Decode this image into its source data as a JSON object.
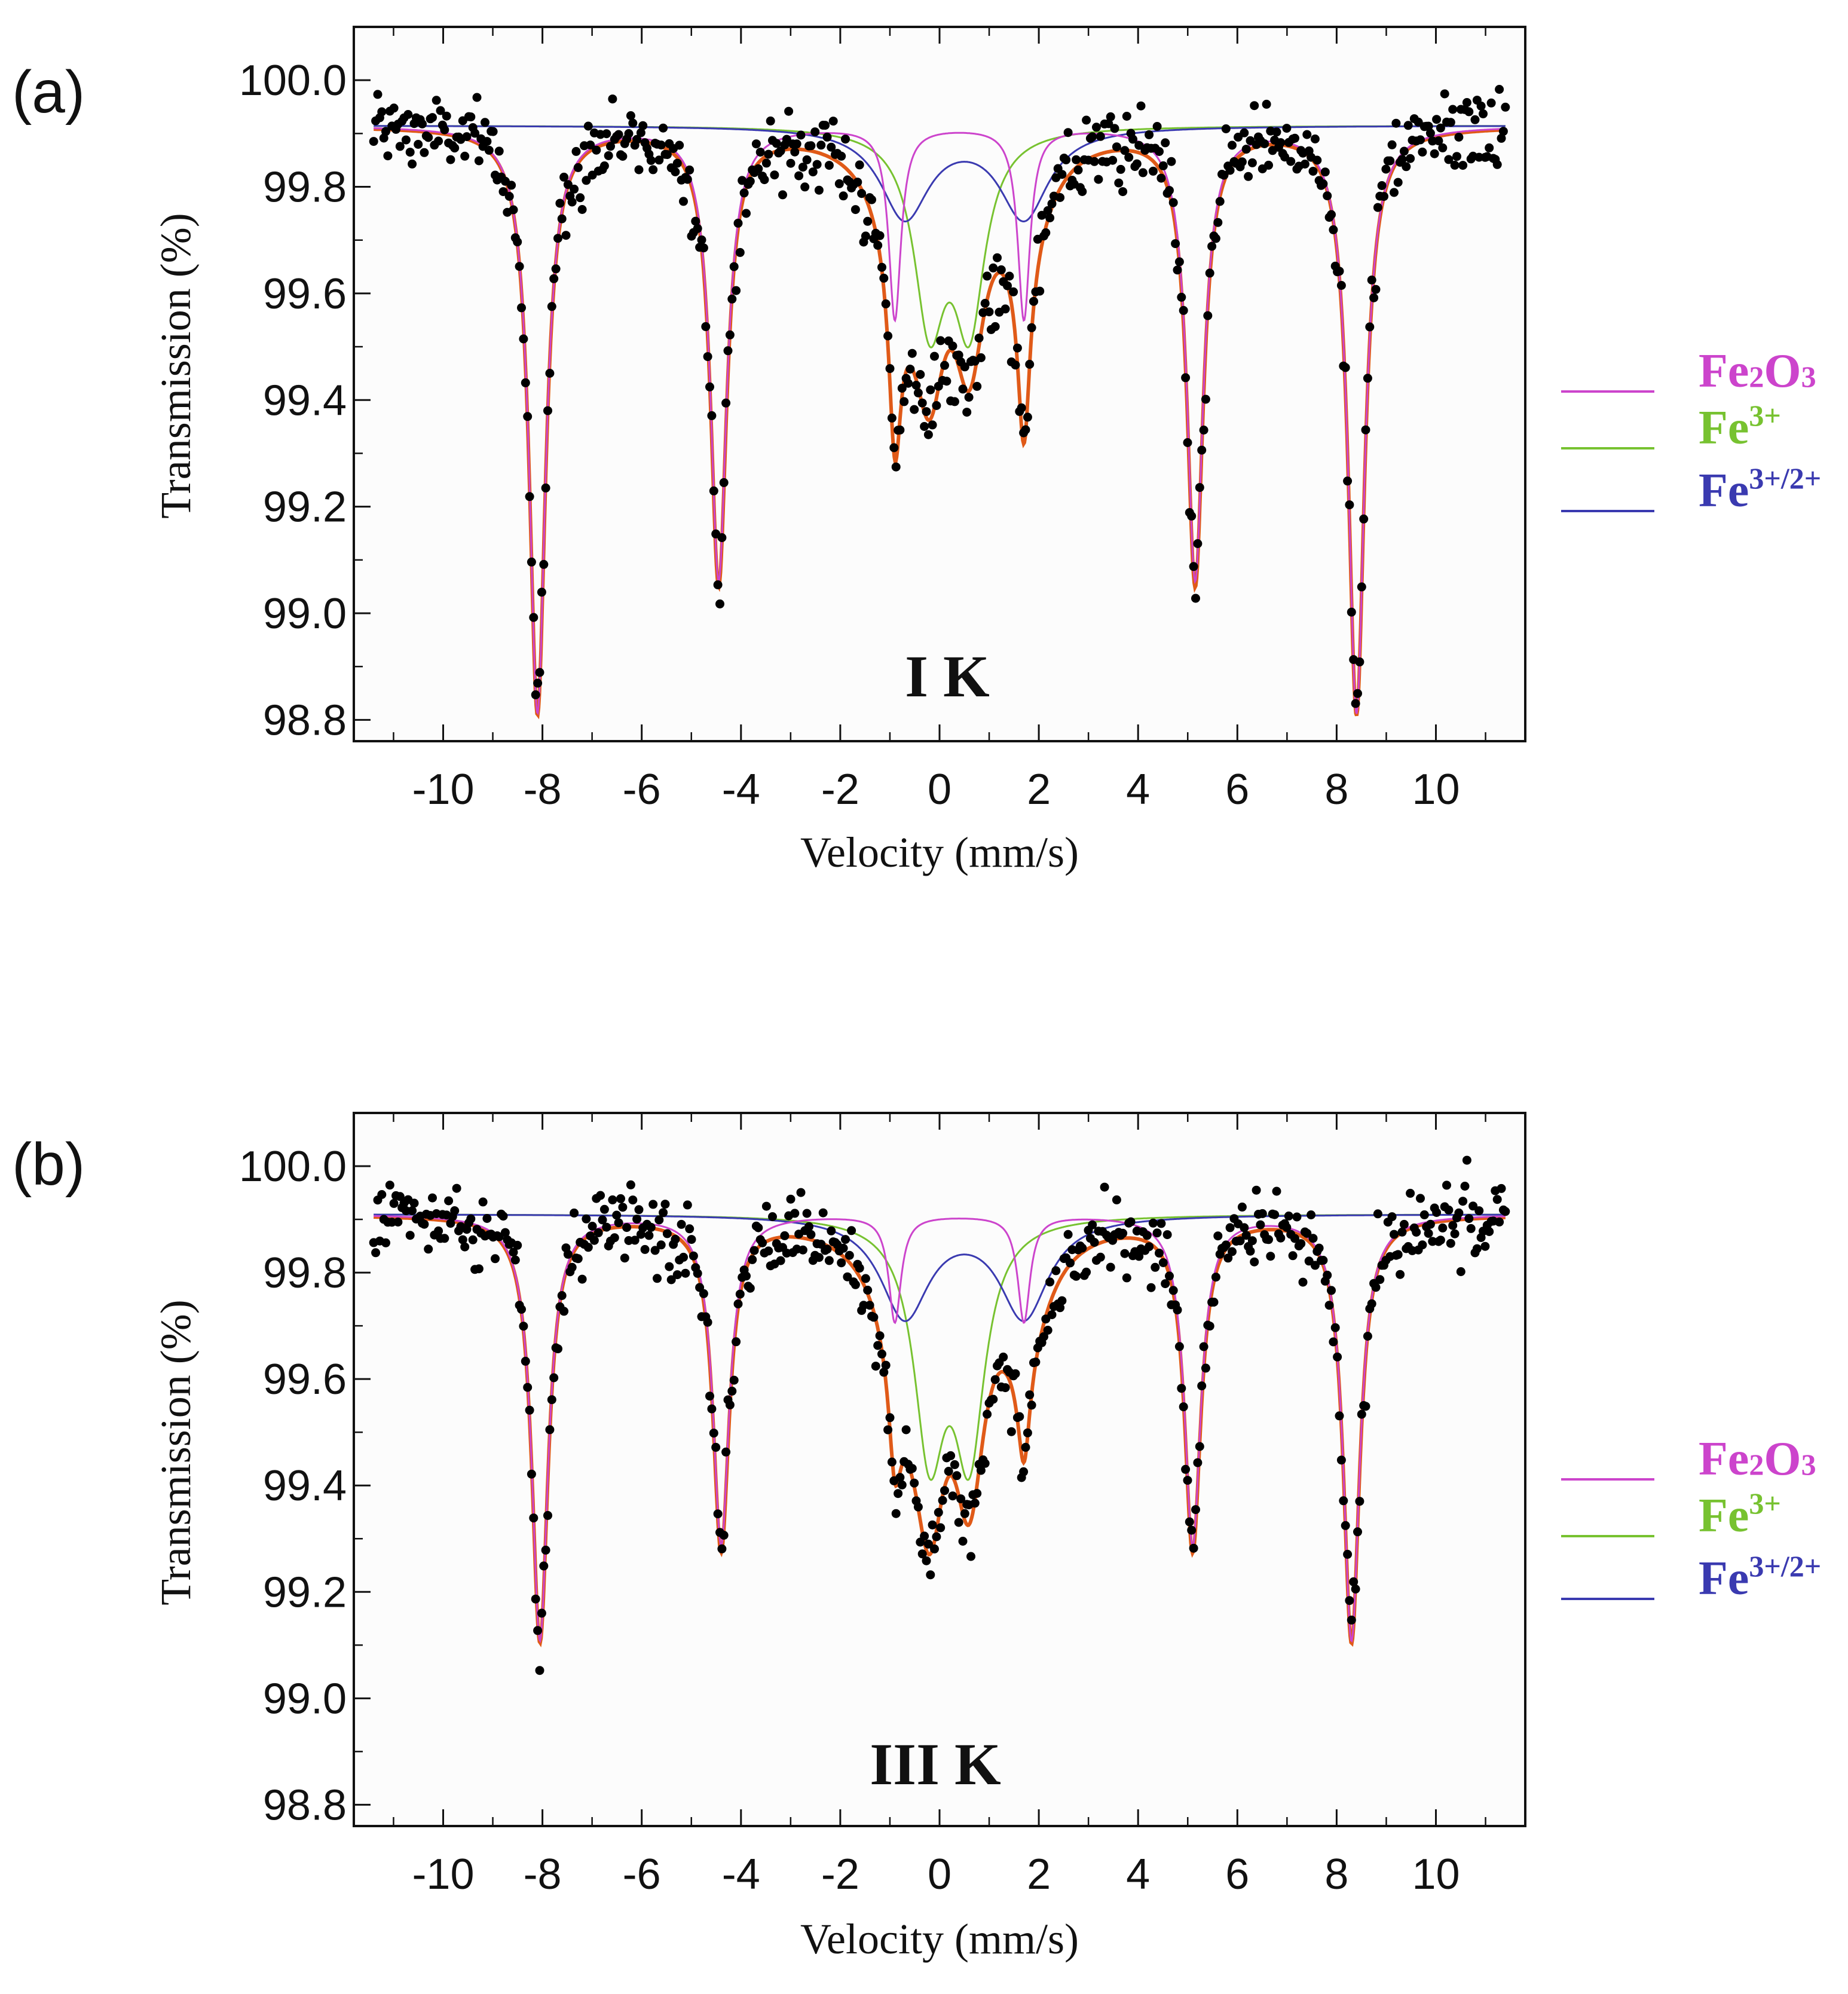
{
  "colors": {
    "Fe2O3": "#cc44cc",
    "Fe3+": "#77c230",
    "Fe3+/2+": "#3a3ab0",
    "fit": "#e05a18",
    "points": "#000000",
    "axis": "#111111"
  },
  "legend": [
    {
      "key": "Fe2O3",
      "parts": [
        {
          "t": "Fe",
          "s": "base"
        },
        {
          "t": "2",
          "s": "sub"
        },
        {
          "t": "O",
          "s": "base"
        },
        {
          "t": "3",
          "s": "sub"
        }
      ]
    },
    {
      "key": "Fe3+",
      "parts": [
        {
          "t": "Fe",
          "s": "base"
        },
        {
          "t": "3+",
          "s": "sup"
        }
      ]
    },
    {
      "key": "Fe3+/2+",
      "parts": [
        {
          "t": "Fe",
          "s": "base"
        },
        {
          "t": "3+/2+",
          "s": "sup"
        }
      ]
    }
  ],
  "chart_data": [
    {
      "panel": "(a)",
      "type": "scatter",
      "title": "I K",
      "xlabel": "Velocity (mm/s)",
      "ylabel": "Transmission (%)",
      "xlim": [
        -11.8,
        11.8
      ],
      "ylim": [
        98.76,
        100.1
      ],
      "xticks": [
        -10,
        -8,
        -6,
        -4,
        -2,
        0,
        2,
        4,
        6,
        8,
        10
      ],
      "xtick_labels": [
        "-10",
        "-8",
        "-6",
        "-4",
        "-2",
        "0",
        "2",
        "4",
        "6",
        "8",
        "10"
      ],
      "yticks": [
        98.8,
        99.0,
        99.2,
        99.4,
        99.6,
        99.8,
        100.0
      ],
      "ytick_labels": [
        "98.8",
        "99.0",
        "99.2",
        "99.4",
        "99.6",
        "99.8",
        "100.0"
      ],
      "baseline": 99.915,
      "fe2o3_positions": [
        -8.1,
        -4.45,
        -0.9,
        1.7,
        5.15,
        8.4
      ],
      "fe2o3_depths": [
        1.1,
        0.85,
        0.36,
        0.36,
        0.85,
        1.1
      ],
      "fe2o3_widths": [
        0.2,
        0.2,
        0.15,
        0.15,
        0.2,
        0.2
      ],
      "fe3_positions": [
        -0.2,
        0.6
      ],
      "fe3_depths": [
        0.35,
        0.35
      ],
      "fe3_width": 0.38,
      "fe32_positions": [
        -0.7,
        1.7
      ],
      "fe32_depths": [
        0.17,
        0.17
      ],
      "fe32_width": 0.6,
      "n_points": 560,
      "noise": 0.035,
      "legend_labels": [
        "Fe2O3",
        "Fe3+",
        "Fe3+/2+"
      ]
    },
    {
      "panel": "(b)",
      "type": "scatter",
      "title": "III K",
      "xlabel": "Velocity (mm/s)",
      "ylabel": "Transmission (%)",
      "xlim": [
        -11.8,
        11.8
      ],
      "ylim": [
        98.76,
        100.1
      ],
      "xticks": [
        -10,
        -8,
        -6,
        -4,
        -2,
        0,
        2,
        4,
        6,
        8,
        10
      ],
      "xtick_labels": [
        "-10",
        "-8",
        "-6",
        "-4",
        "-2",
        "0",
        "2",
        "4",
        "6",
        "8",
        "10"
      ],
      "yticks": [
        98.8,
        99.0,
        99.2,
        99.4,
        99.6,
        99.8,
        100.0
      ],
      "ytick_labels": [
        "98.8",
        "99.0",
        "99.2",
        "99.4",
        "99.6",
        "99.8",
        "100.0"
      ],
      "baseline": 99.91,
      "fe2o3_positions": [
        -8.05,
        -4.4,
        -0.9,
        1.7,
        5.1,
        8.3
      ],
      "fe2o3_depths": [
        0.8,
        0.62,
        0.2,
        0.2,
        0.62,
        0.8
      ],
      "fe2o3_widths": [
        0.2,
        0.2,
        0.15,
        0.15,
        0.2,
        0.2
      ],
      "fe3_positions": [
        -0.2,
        0.6
      ],
      "fe3_depths": [
        0.42,
        0.42
      ],
      "fe3_width": 0.38,
      "fe32_positions": [
        -0.7,
        1.7
      ],
      "fe32_depths": [
        0.19,
        0.19
      ],
      "fe32_width": 0.6,
      "n_points": 560,
      "noise": 0.035,
      "legend_labels": [
        "Fe2O3",
        "Fe3+",
        "Fe3+/2+"
      ]
    }
  ]
}
